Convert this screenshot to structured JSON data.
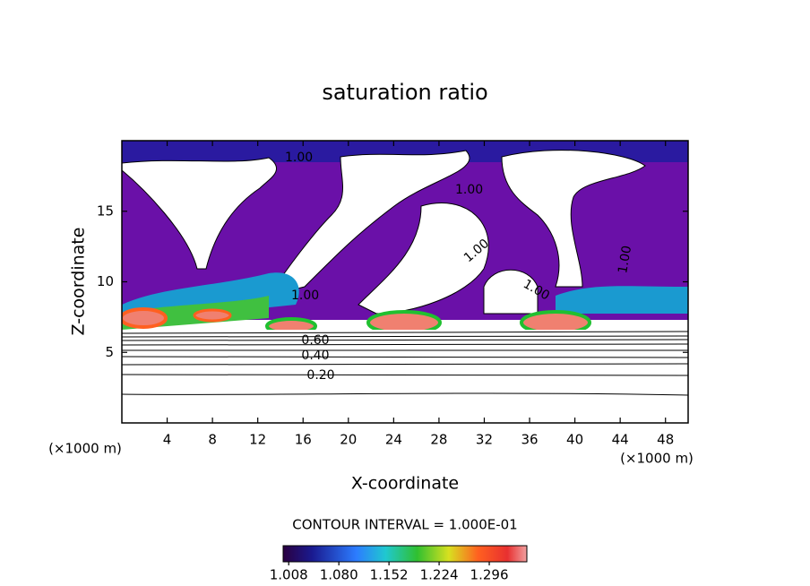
{
  "chart_data": {
    "type": "contour",
    "title": "saturation ratio",
    "x_label": "X-coordinate",
    "y_label": "Z-coordinate",
    "axis_unit": "(×1000 m)",
    "xlim": [
      0,
      50
    ],
    "xticks": [
      4,
      8,
      12,
      16,
      20,
      24,
      28,
      32,
      36,
      40,
      44,
      48
    ],
    "ylim": [
      0,
      20
    ],
    "yticks": [
      5,
      10,
      15
    ],
    "contour_interval": "CONTOUR INTERVAL = 1.000E-01",
    "colorbar": {
      "clim": [
        1.0,
        1.35
      ],
      "ticks": [
        1.008,
        {
          "value": 1.08,
          "label": "1.080"
        },
        1.152,
        1.224,
        1.296
      ]
    },
    "contour_labels": [
      "1.00",
      "1.00",
      "1.00",
      "1.00",
      "1.00",
      "1.00",
      "0.60",
      "0.40",
      "0.20"
    ]
  }
}
